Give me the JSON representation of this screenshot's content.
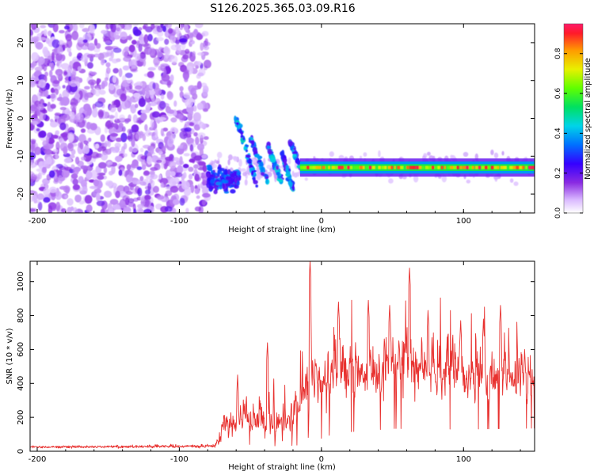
{
  "title": "S126.2025.365.03.09.R16",
  "chart_data": [
    {
      "type": "heatmap",
      "name": "spectrogram",
      "xlabel": "Height of straight line (km)",
      "ylabel": "Frequency (Hz)",
      "xlim": [
        -205,
        150
      ],
      "ylim": [
        -25,
        25
      ],
      "xticks": [
        -200,
        -100,
        0,
        100
      ],
      "yticks": [
        -20,
        -10,
        0,
        10,
        20
      ],
      "noise_region_x": [
        -205,
        -80
      ],
      "onset_x": -80,
      "signal_band_freq_hz": -13,
      "signal_band_x": [
        -15,
        150
      ],
      "streaks": [
        {
          "x0": -60,
          "f0": 0,
          "x1": -45,
          "f1": -18
        },
        {
          "x0": -50,
          "f0": -5,
          "x1": -38,
          "f1": -17
        },
        {
          "x0": -38,
          "f0": -7,
          "x1": -28,
          "f1": -17
        },
        {
          "x0": -28,
          "f0": -9,
          "x1": -20,
          "f1": -19
        },
        {
          "x0": -22,
          "f0": -6,
          "x1": -15,
          "f1": -13
        }
      ],
      "colorbar": {
        "label": "Normalized spectral amplitude",
        "range": [
          0,
          0.95
        ],
        "ticks": [
          0.0,
          0.2,
          0.4,
          0.6,
          0.8
        ]
      }
    },
    {
      "type": "line",
      "name": "snr",
      "xlabel": "Height of straight line (km)",
      "ylabel": "SNR (10 * v/v)",
      "xlim": [
        -205,
        150
      ],
      "ylim": [
        0,
        1120
      ],
      "xticks": [
        -200,
        -100,
        0,
        100
      ],
      "yticks": [
        0,
        200,
        400,
        600,
        800,
        1000
      ],
      "color": "#e8312f",
      "baseline_level": 25,
      "segments": [
        {
          "x": -205,
          "level": 25,
          "amp": 10
        },
        {
          "x": -75,
          "level": 30,
          "amp": 15
        },
        {
          "x": -68,
          "level": 150,
          "amp": 120
        },
        {
          "x": -55,
          "level": 180,
          "amp": 150
        },
        {
          "x": -40,
          "level": 140,
          "amp": 140
        },
        {
          "x": -25,
          "level": 160,
          "amp": 180
        },
        {
          "x": -15,
          "level": 260,
          "amp": 200
        },
        {
          "x": -5,
          "level": 360,
          "amp": 250
        },
        {
          "x": 10,
          "level": 420,
          "amp": 260
        },
        {
          "x": 50,
          "level": 470,
          "amp": 280
        },
        {
          "x": 100,
          "level": 430,
          "amp": 250
        },
        {
          "x": 150,
          "level": 400,
          "amp": 220
        }
      ],
      "peaks": [
        {
          "x": -8,
          "y": 1120
        },
        {
          "x": 12,
          "y": 880
        },
        {
          "x": 33,
          "y": 890
        },
        {
          "x": 48,
          "y": 860
        },
        {
          "x": 62,
          "y": 1080
        },
        {
          "x": 75,
          "y": 830
        },
        {
          "x": 98,
          "y": 770
        },
        {
          "x": 114,
          "y": 780
        },
        {
          "x": 126,
          "y": 860
        },
        {
          "x": 143,
          "y": 600
        },
        {
          "x": -38,
          "y": 640
        },
        {
          "x": -59,
          "y": 450
        }
      ]
    }
  ]
}
